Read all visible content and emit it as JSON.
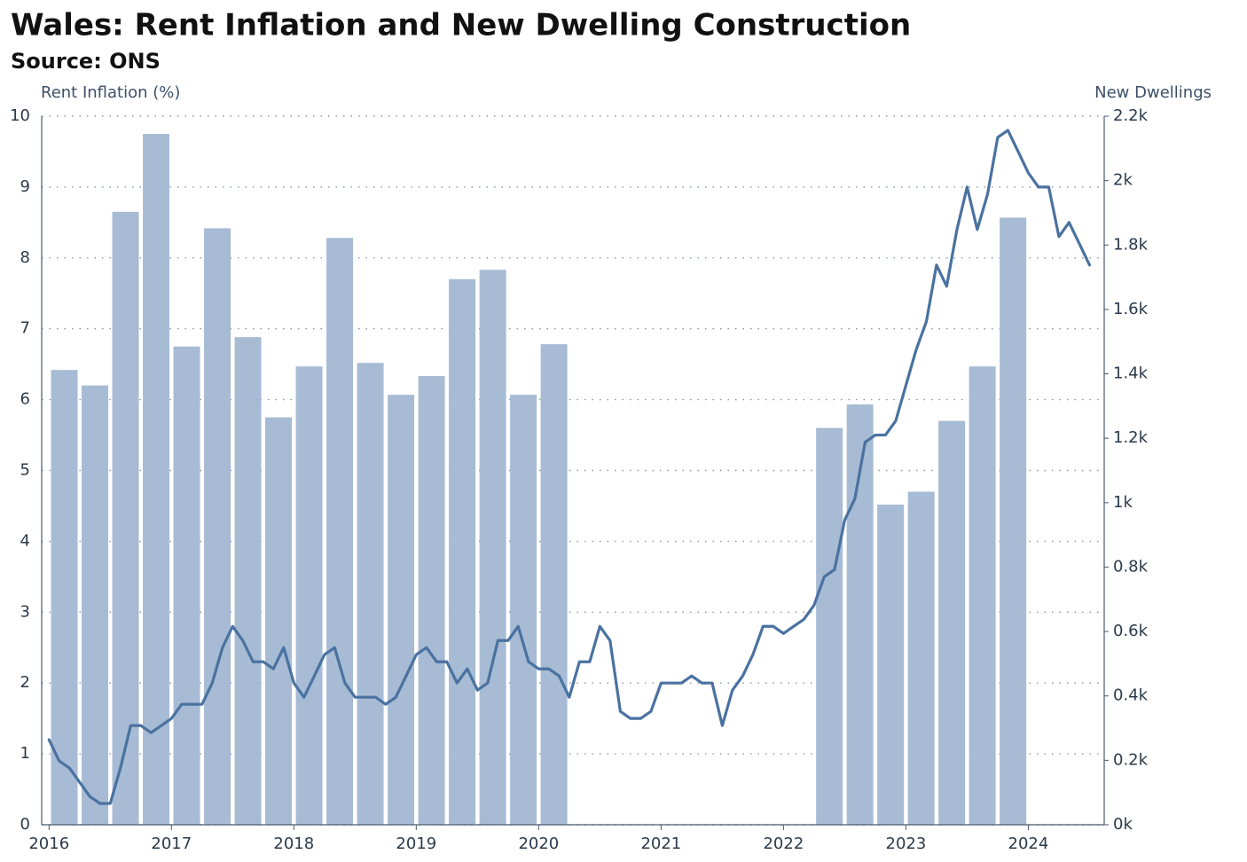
{
  "chart_data": {
    "type": "combo",
    "title": "Wales: Rent Inflation and New Dwelling Construction",
    "subtitle": "Source: ONS",
    "y_label": "Rent Inflation (%)",
    "y2_label": "New Dwellings",
    "xlim": [
      2015.94,
      2024.62
    ],
    "xticks": [
      2016,
      2017,
      2018,
      2019,
      2020,
      2021,
      2022,
      2023,
      2024
    ],
    "ylim": [
      0,
      10
    ],
    "yticks": [
      0,
      1,
      2,
      3,
      4,
      5,
      6,
      7,
      8,
      9,
      10
    ],
    "y2lim": [
      0,
      2200
    ],
    "y2ticks": [
      {
        "value": 0,
        "label": "0k"
      },
      {
        "value": 200,
        "label": "0.2k"
      },
      {
        "value": 400,
        "label": "0.4k"
      },
      {
        "value": 600,
        "label": "0.6k"
      },
      {
        "value": 800,
        "label": "0.8k"
      },
      {
        "value": 1000,
        "label": "1k"
      },
      {
        "value": 1200,
        "label": "1.2k"
      },
      {
        "value": 1400,
        "label": "1.4k"
      },
      {
        "value": 1600,
        "label": "1.6k"
      },
      {
        "value": 1800,
        "label": "1.8k"
      },
      {
        "value": 2000,
        "label": "2k"
      },
      {
        "value": 2200,
        "label": "2.2k"
      }
    ],
    "grid": true,
    "bars": {
      "axis": "y2",
      "color": "#a7bbd5",
      "x": [
        2016.125,
        2016.375,
        2016.625,
        2016.875,
        2017.125,
        2017.375,
        2017.625,
        2017.875,
        2018.125,
        2018.375,
        2018.625,
        2018.875,
        2019.125,
        2019.375,
        2019.625,
        2019.875,
        2020.125,
        2022.375,
        2022.625,
        2022.875,
        2023.125,
        2023.375,
        2023.625,
        2023.875
      ],
      "values": [
        1412,
        1364,
        1903,
        2145,
        1485,
        1852,
        1514,
        1265,
        1423,
        1822,
        1434,
        1335,
        1393,
        1694,
        1723,
        1335,
        1492,
        1232,
        1305,
        994,
        1034,
        1254,
        1423,
        1885
      ]
    },
    "line": {
      "axis": "y",
      "color": "#4a72a0",
      "x": [
        2016,
        2016.083,
        2016.167,
        2016.25,
        2016.333,
        2016.417,
        2016.5,
        2016.583,
        2016.667,
        2016.75,
        2016.833,
        2016.917,
        2017,
        2017.083,
        2017.167,
        2017.25,
        2017.333,
        2017.417,
        2017.5,
        2017.583,
        2017.667,
        2017.75,
        2017.833,
        2017.917,
        2018,
        2018.083,
        2018.167,
        2018.25,
        2018.333,
        2018.417,
        2018.5,
        2018.583,
        2018.667,
        2018.75,
        2018.833,
        2018.917,
        2019,
        2019.083,
        2019.167,
        2019.25,
        2019.333,
        2019.417,
        2019.5,
        2019.583,
        2019.667,
        2019.75,
        2019.833,
        2019.917,
        2020,
        2020.083,
        2020.167,
        2020.25,
        2020.333,
        2020.417,
        2020.5,
        2020.583,
        2020.667,
        2020.75,
        2020.833,
        2020.917,
        2021,
        2021.083,
        2021.167,
        2021.25,
        2021.333,
        2021.417,
        2021.5,
        2021.583,
        2021.667,
        2021.75,
        2021.833,
        2021.917,
        2022,
        2022.083,
        2022.167,
        2022.25,
        2022.333,
        2022.417,
        2022.5,
        2022.583,
        2022.667,
        2022.75,
        2022.833,
        2022.917,
        2023,
        2023.083,
        2023.167,
        2023.25,
        2023.333,
        2023.417,
        2023.5,
        2023.583,
        2023.667,
        2023.75,
        2023.833,
        2023.917,
        2024,
        2024.083,
        2024.167,
        2024.25,
        2024.333,
        2024.417,
        2024.5
      ],
      "values": [
        1.2,
        0.9,
        0.8,
        0.6,
        0.4,
        0.3,
        0.3,
        0.8,
        1.4,
        1.4,
        1.3,
        1.4,
        1.5,
        1.7,
        1.7,
        1.7,
        2.0,
        2.5,
        2.8,
        2.6,
        2.3,
        2.3,
        2.2,
        2.5,
        2.0,
        1.8,
        2.1,
        2.4,
        2.5,
        2.0,
        1.8,
        1.8,
        1.8,
        1.7,
        1.8,
        2.1,
        2.4,
        2.5,
        2.3,
        2.3,
        2.0,
        2.2,
        1.9,
        2.0,
        2.6,
        2.6,
        2.8,
        2.3,
        2.2,
        2.2,
        2.1,
        1.8,
        2.3,
        2.3,
        2.8,
        2.6,
        1.6,
        1.5,
        1.5,
        1.6,
        2.0,
        2.0,
        2.0,
        2.1,
        2.0,
        2.0,
        1.4,
        1.9,
        2.1,
        2.4,
        2.8,
        2.8,
        2.7,
        2.8,
        2.9,
        3.1,
        3.5,
        3.6,
        4.3,
        4.6,
        5.4,
        5.5,
        5.5,
        5.7,
        6.2,
        6.7,
        7.1,
        7.9,
        7.6,
        8.4,
        9.0,
        8.4,
        8.9,
        9.7,
        9.8,
        9.5,
        9.2,
        9.0,
        9.0,
        8.3,
        8.5,
        8.2,
        7.9
      ]
    }
  }
}
